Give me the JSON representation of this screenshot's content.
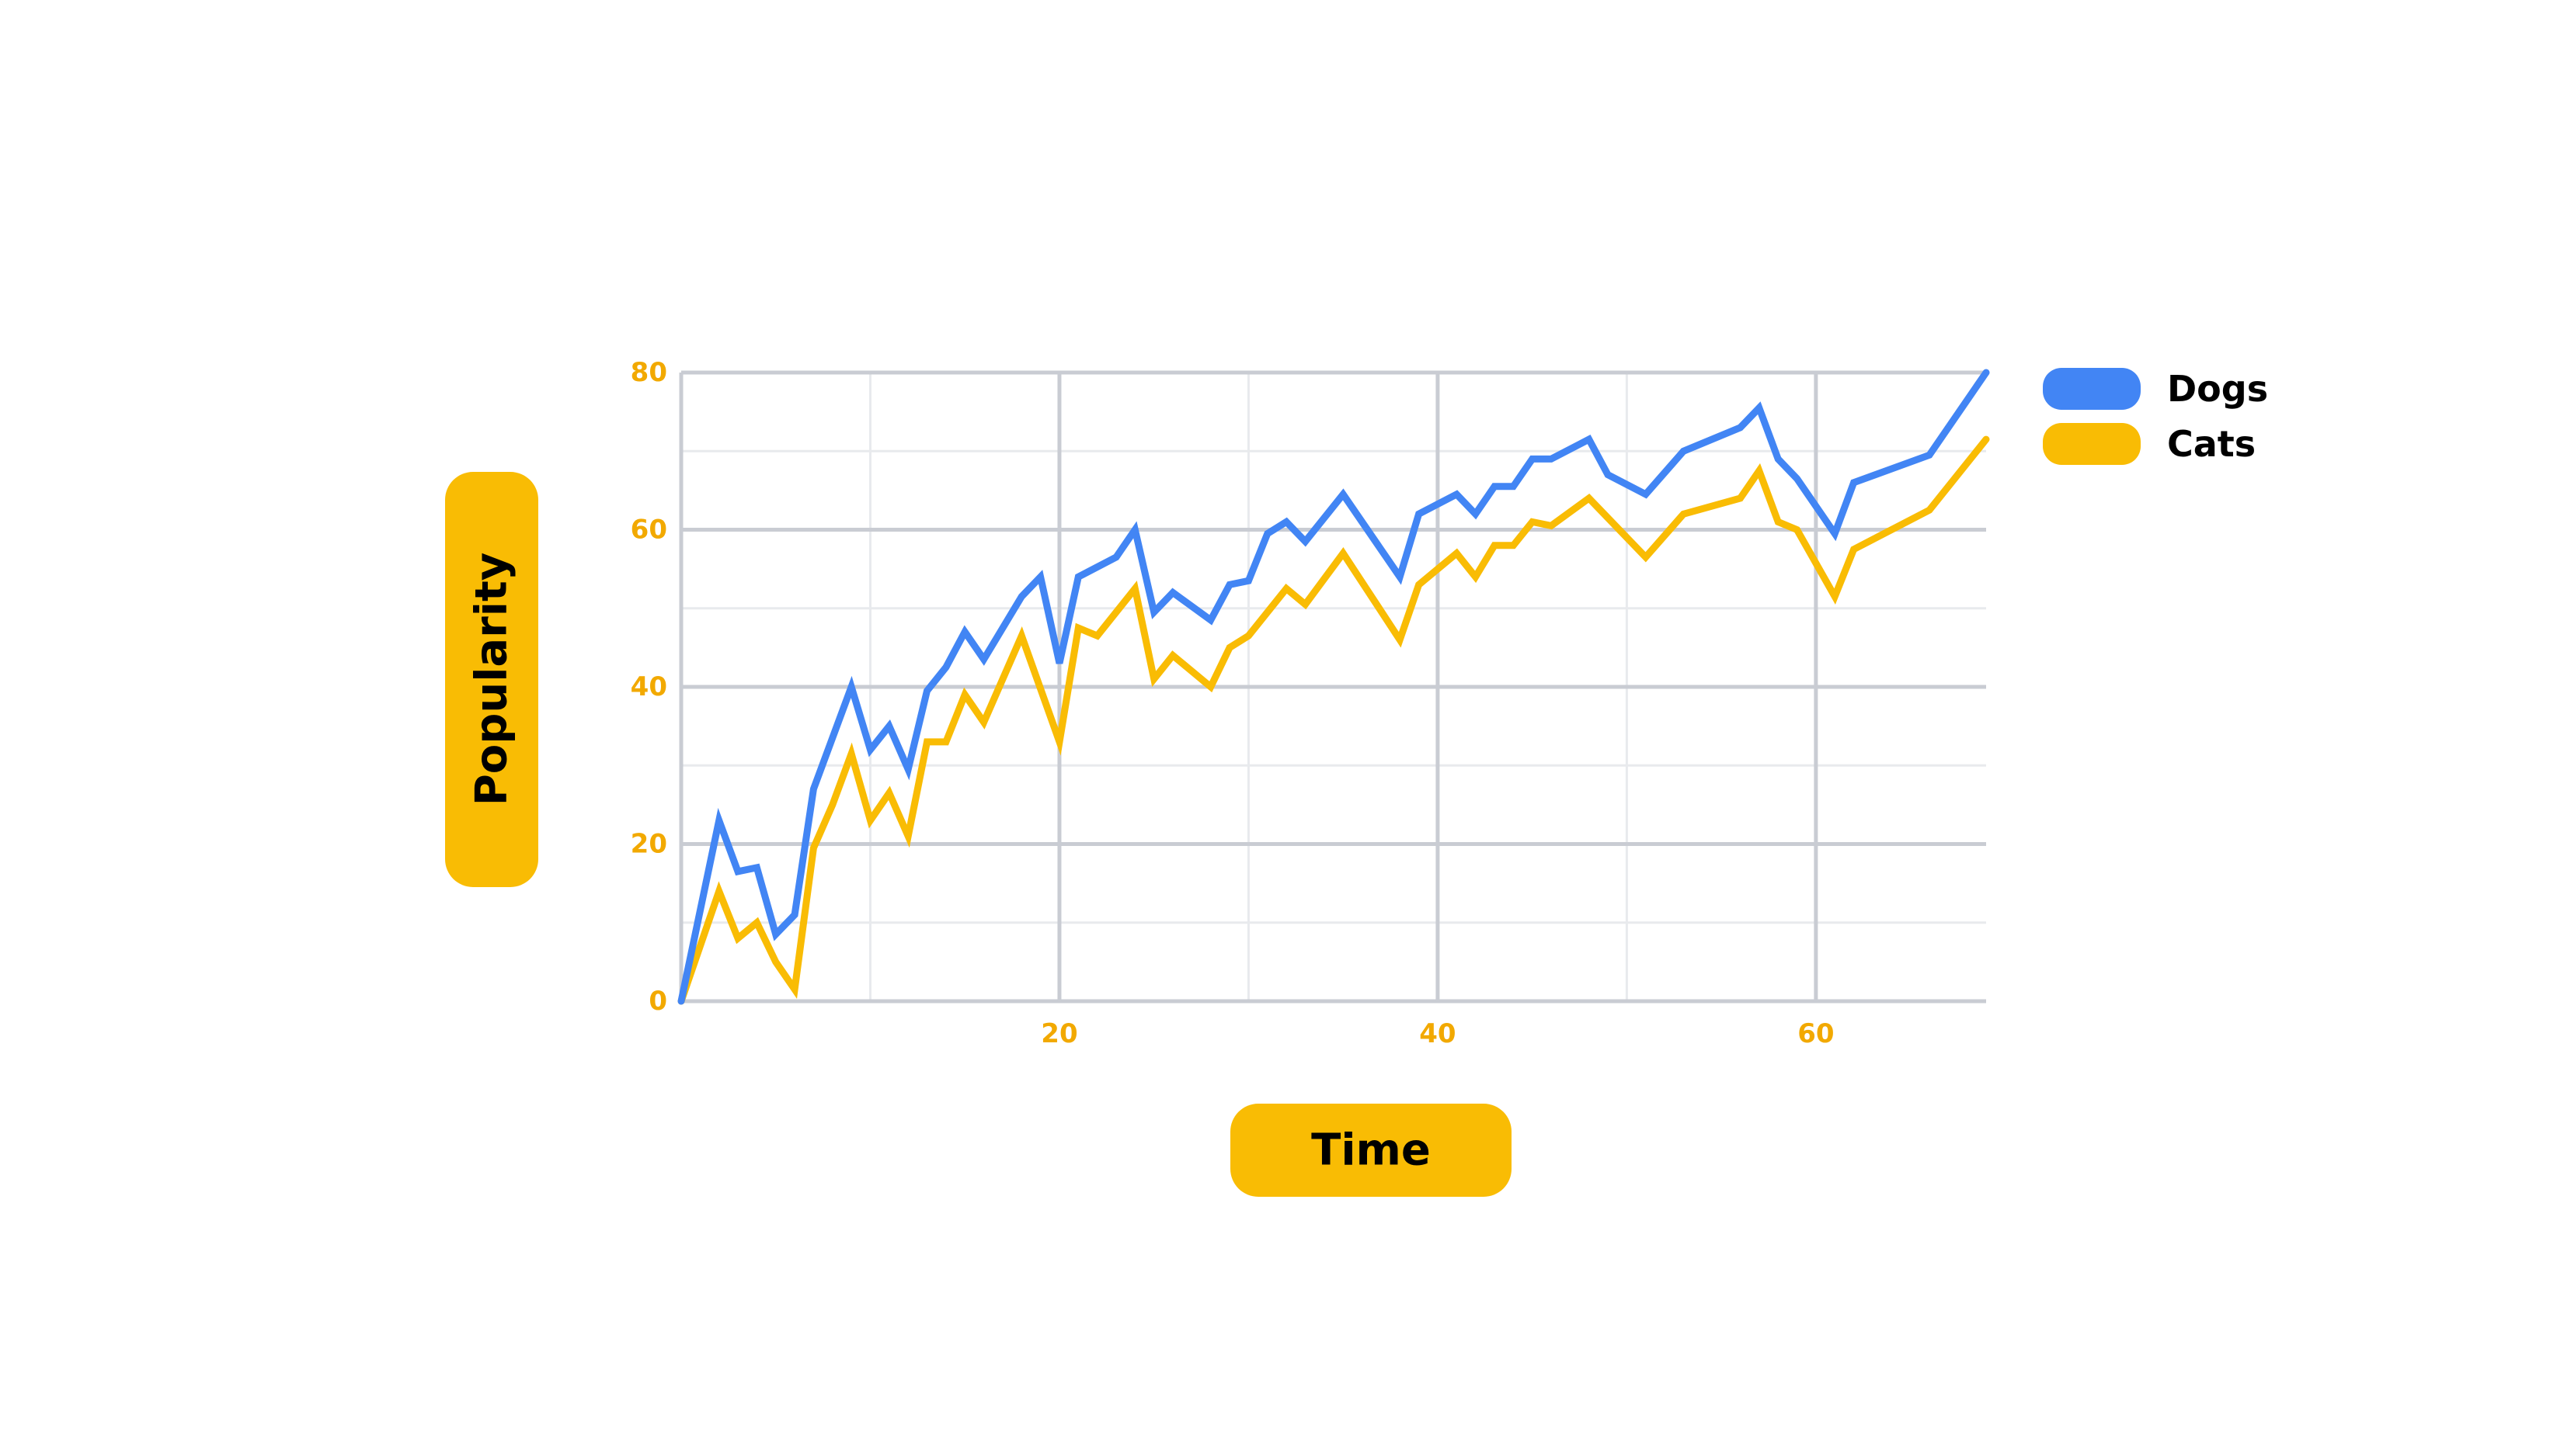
{
  "chart_data": {
    "type": "line",
    "title": "",
    "xlabel": "Time",
    "ylabel": "Popularity",
    "xlim": [
      0,
      69
    ],
    "ylim": [
      0,
      80
    ],
    "x_ticks": [
      20,
      40,
      60
    ],
    "y_ticks": [
      0,
      20,
      40,
      60,
      80
    ],
    "grid": true,
    "legend_position": "top-right",
    "colors": {
      "axis_text": "#F2A900",
      "pill": "#F9BC04",
      "grid_major": "#C9CCD3",
      "grid_minor": "#E8EAED"
    },
    "series": [
      {
        "name": "Dogs",
        "color": "#4285F4",
        "x": [
          0,
          2,
          3,
          4,
          5,
          6,
          7,
          9,
          10,
          11,
          12,
          13,
          14,
          15,
          16,
          18,
          19,
          20,
          21,
          23,
          24,
          25,
          26,
          28,
          29,
          30,
          31,
          32,
          33,
          35,
          38,
          39,
          41,
          42,
          43,
          44,
          45,
          46,
          48,
          49,
          51,
          53,
          56,
          57,
          58,
          59,
          61,
          62,
          66,
          69
        ],
        "values": [
          0,
          23,
          16.5,
          17,
          8.5,
          11,
          27,
          40,
          32,
          35,
          29.5,
          39.5,
          42.5,
          47,
          43.5,
          51.5,
          54,
          43,
          54,
          56.5,
          60,
          49.5,
          52,
          48.5,
          53,
          53.5,
          59.5,
          61,
          58.5,
          64.5,
          54,
          62,
          64.5,
          62,
          65.5,
          65.5,
          69,
          69,
          71.5,
          67,
          64.5,
          70,
          73,
          75.5,
          69,
          66.5,
          59.5,
          66,
          69.5,
          80
        ]
      },
      {
        "name": "Cats",
        "color": "#F9BC04",
        "x": [
          0,
          2,
          3,
          4,
          5,
          6,
          7,
          8,
          9,
          10,
          11,
          12,
          13,
          14,
          15,
          16,
          18,
          20,
          21,
          22,
          24,
          25,
          26,
          28,
          29,
          30,
          32,
          33,
          35,
          38,
          39,
          41,
          42,
          43,
          44,
          45,
          46,
          48,
          51,
          53,
          56,
          57,
          58,
          59,
          61,
          62,
          66,
          69
        ],
        "values": [
          0,
          14,
          8,
          10,
          5,
          1.5,
          19.5,
          25,
          31.5,
          23,
          26.5,
          21,
          33,
          33,
          39,
          35.5,
          46.5,
          33,
          47.5,
          46.5,
          52.5,
          41,
          44,
          40,
          45,
          46.5,
          52.5,
          50.5,
          57,
          46,
          53,
          57,
          54,
          58,
          58,
          61,
          60.5,
          64,
          56.5,
          62,
          64,
          67.5,
          61,
          60,
          51.5,
          57.5,
          62.5,
          71.5
        ]
      }
    ]
  }
}
